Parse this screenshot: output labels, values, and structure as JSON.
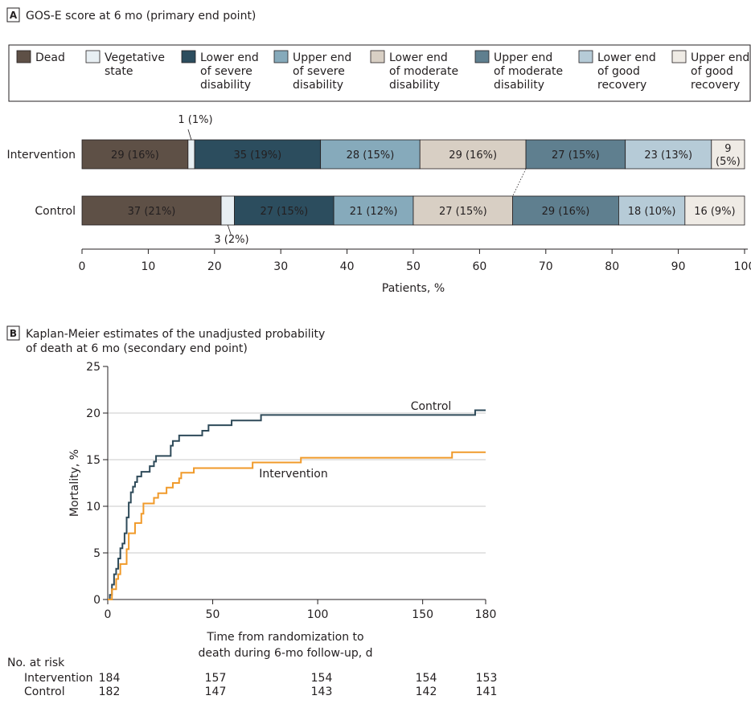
{
  "panel_a": {
    "letter": "A",
    "title": "GOS-E score at 6 mo (primary end point)"
  },
  "panel_b": {
    "letter": "B",
    "title_line1": "Kaplan-Meier estimates of the unadjusted probability",
    "title_line2": "of death at 6 mo (secondary end point)"
  },
  "colors": {
    "Dead": "#5e5046",
    "Vegetative state": "#e8eff3",
    "Lower end of severe disability": "#2c4d5e",
    "Upper end of severe disability": "#86aabb",
    "Lower end of moderate disability": "#d8cfc4",
    "Upper end of moderate disability": "#5f7f8f",
    "Lower end of good recovery": "#b6cbd7",
    "Upper end of good recovery": "#efebe5",
    "km_control": "#2e4a59",
    "km_intervention": "#f09a2a"
  },
  "chart_data": [
    {
      "type": "bar",
      "orientation": "horizontal",
      "stacked": true,
      "title": "GOS-E score at 6 mo (primary end point)",
      "xlabel": "Patients, %",
      "xlim": [
        0,
        100
      ],
      "xticks": [
        0,
        10,
        20,
        30,
        40,
        50,
        60,
        70,
        80,
        90,
        100
      ],
      "legend_position": "top",
      "legend": [
        {
          "key": "Dead",
          "lines": [
            "Dead"
          ]
        },
        {
          "key": "Vegetative state",
          "lines": [
            "Vegetative",
            "state"
          ]
        },
        {
          "key": "Lower end of severe disability",
          "lines": [
            "Lower end",
            "of severe",
            "disability"
          ]
        },
        {
          "key": "Upper end of severe disability",
          "lines": [
            "Upper end",
            "of severe",
            "disability"
          ]
        },
        {
          "key": "Lower end of moderate disability",
          "lines": [
            "Lower end",
            "of moderate",
            "disability"
          ]
        },
        {
          "key": "Upper end of moderate disability",
          "lines": [
            "Upper end",
            "of moderate",
            "disability"
          ]
        },
        {
          "key": "Lower end of good recovery",
          "lines": [
            "Lower end",
            "of good",
            "recovery"
          ]
        },
        {
          "key": "Upper end of good recovery",
          "lines": [
            "Upper end",
            "of good",
            "recovery"
          ]
        }
      ],
      "categories": [
        "Intervention",
        "Control"
      ],
      "series": [
        {
          "name": "Dead",
          "values": [
            16,
            21
          ],
          "counts": [
            29,
            37
          ],
          "labels": [
            "29 (16%)",
            "37 (21%)"
          ]
        },
        {
          "name": "Vegetative state",
          "values": [
            1,
            2
          ],
          "counts": [
            1,
            3
          ],
          "labels": [
            "1 (1%)",
            "3 (2%)"
          ]
        },
        {
          "name": "Lower end of severe disability",
          "values": [
            19,
            15
          ],
          "counts": [
            35,
            27
          ],
          "labels": [
            "35 (19%)",
            "27 (15%)"
          ]
        },
        {
          "name": "Upper end of severe disability",
          "values": [
            15,
            12
          ],
          "counts": [
            28,
            21
          ],
          "labels": [
            "28 (15%)",
            "21 (12%)"
          ]
        },
        {
          "name": "Lower end of moderate disability",
          "values": [
            16,
            15
          ],
          "counts": [
            29,
            27
          ],
          "labels": [
            "29 (16%)",
            "27 (15%)"
          ]
        },
        {
          "name": "Upper end of moderate disability",
          "values": [
            15,
            16
          ],
          "counts": [
            27,
            29
          ],
          "labels": [
            "27 (15%)",
            "29 (16%)"
          ]
        },
        {
          "name": "Lower end of good recovery",
          "values": [
            13,
            10
          ],
          "counts": [
            23,
            18
          ],
          "labels": [
            "23 (13%)",
            "18 (10%)"
          ]
        },
        {
          "name": "Upper end of good recovery",
          "values": [
            5,
            9
          ],
          "counts": [
            9,
            16
          ],
          "labels": [
            "9",
            "16 (9%)"
          ],
          "extra_labels": [
            "(5%)",
            ""
          ]
        }
      ]
    },
    {
      "type": "line",
      "step": true,
      "title": "Kaplan-Meier estimates of the unadjusted probability of death at 6 mo (secondary end point)",
      "xlabel_lines": [
        "Time from randomization to",
        "death during 6-mo follow-up, d"
      ],
      "ylabel": "Mortality, %",
      "xlim": [
        0,
        180
      ],
      "ylim": [
        0,
        25
      ],
      "xticks": [
        0,
        50,
        100,
        150,
        180
      ],
      "yticks": [
        0,
        5,
        10,
        15,
        20,
        25
      ],
      "grid": true,
      "series": [
        {
          "name": "Control",
          "points": [
            [
              0,
              0
            ],
            [
              1,
              0.5
            ],
            [
              2,
              1.6
            ],
            [
              3,
              2.7
            ],
            [
              4,
              3.3
            ],
            [
              5,
              4.4
            ],
            [
              6,
              5.5
            ],
            [
              7,
              6.0
            ],
            [
              8,
              7.1
            ],
            [
              9,
              8.8
            ],
            [
              10,
              10.4
            ],
            [
              11,
              11.5
            ],
            [
              12,
              12.1
            ],
            [
              13,
              12.6
            ],
            [
              14,
              13.2
            ],
            [
              16,
              13.7
            ],
            [
              20,
              14.3
            ],
            [
              22,
              14.8
            ],
            [
              23,
              15.4
            ],
            [
              30,
              16.5
            ],
            [
              31,
              17.0
            ],
            [
              34,
              17.6
            ],
            [
              45,
              18.1
            ],
            [
              48,
              18.7
            ],
            [
              59,
              19.2
            ],
            [
              73,
              19.8
            ],
            [
              175,
              20.3
            ],
            [
              180,
              20.3
            ]
          ]
        },
        {
          "name": "Intervention",
          "points": [
            [
              0,
              0
            ],
            [
              2,
              1.1
            ],
            [
              4,
              2.2
            ],
            [
              5,
              2.7
            ],
            [
              6,
              3.8
            ],
            [
              9,
              5.4
            ],
            [
              10,
              7.1
            ],
            [
              13,
              8.2
            ],
            [
              16,
              9.2
            ],
            [
              17,
              10.3
            ],
            [
              22,
              10.9
            ],
            [
              24,
              11.4
            ],
            [
              28,
              12.0
            ],
            [
              31,
              12.5
            ],
            [
              34,
              13.0
            ],
            [
              35,
              13.6
            ],
            [
              41,
              14.1
            ],
            [
              69,
              14.7
            ],
            [
              92,
              15.2
            ],
            [
              164,
              15.8
            ],
            [
              180,
              15.8
            ]
          ]
        }
      ],
      "number_at_risk": {
        "header": "No. at risk",
        "times": [
          0,
          50,
          100,
          150,
          180
        ],
        "rows": [
          {
            "group": "Intervention",
            "values": [
              184,
              157,
              154,
              154,
              153
            ]
          },
          {
            "group": "Control",
            "values": [
              182,
              147,
              143,
              142,
              141
            ]
          }
        ]
      }
    }
  ]
}
